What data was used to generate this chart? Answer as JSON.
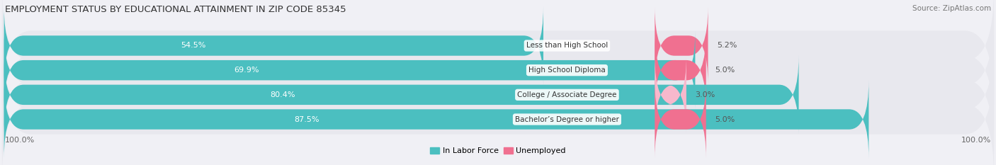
{
  "title": "EMPLOYMENT STATUS BY EDUCATIONAL ATTAINMENT IN ZIP CODE 85345",
  "source": "Source: ZipAtlas.com",
  "categories": [
    "Less than High School",
    "High School Diploma",
    "College / Associate Degree",
    "Bachelor’s Degree or higher"
  ],
  "labor_force": [
    54.5,
    69.9,
    80.4,
    87.5
  ],
  "unemployed": [
    5.2,
    5.0,
    3.0,
    5.0
  ],
  "labor_force_color": "#4bbfc0",
  "unemployed_color": "#f07090",
  "unemployed_color_light": "#f8b8cc",
  "bar_bg_color": "#e8e8ee",
  "axis_label_left": "100.0%",
  "axis_label_right": "100.0%",
  "title_fontsize": 9.5,
  "source_fontsize": 7.5,
  "label_fontsize": 8,
  "legend_fontsize": 8,
  "bar_height": 0.62,
  "bg_color": "#f0f0f5"
}
